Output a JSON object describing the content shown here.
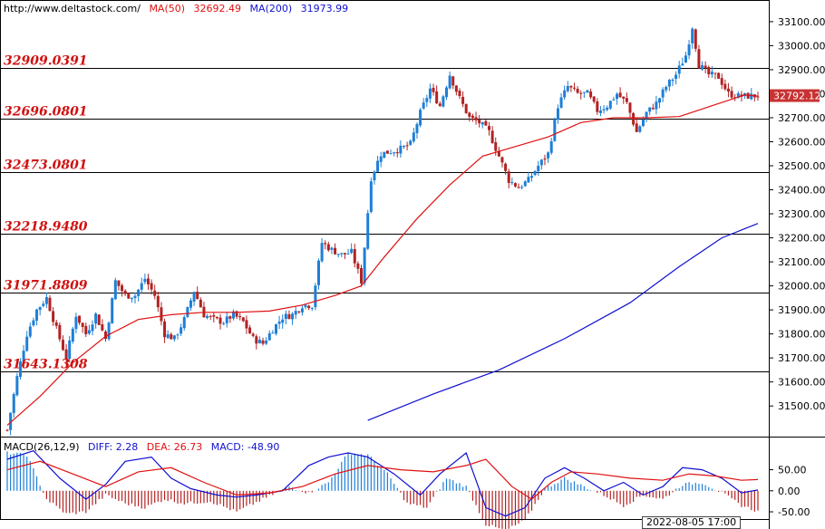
{
  "header": {
    "source": "http://www.deltastock.com/",
    "ma50_label": "MA(50)",
    "ma50_value": "32692.49",
    "ma200_label": "MA(200)",
    "ma200_value": "31973.99"
  },
  "macd_header": {
    "label": "MACD(26,12,9)",
    "diff": "DIFF: 2.28",
    "dea": "DEA: 26.73",
    "macd": "MACD: -48.90"
  },
  "colors": {
    "up": "#1e7fd6",
    "down": "#b22222",
    "ma50": "#e01010",
    "ma200": "#1010d0",
    "level_text": "#d01010",
    "diff": "#1010d0",
    "dea": "#e01010"
  },
  "date_label": "2022-08-05 17:00",
  "chart_data": [
    {
      "type": "candlestick",
      "title": "",
      "y_range": [
        31380,
        33160
      ],
      "y_ticks": [
        31500,
        31600,
        31700,
        31800,
        31900,
        32000,
        32100,
        32200,
        32300,
        32400,
        32500,
        32600,
        32700,
        32800,
        32900,
        33000,
        33100
      ],
      "y_tick_labels": [
        "31500.00",
        "31600.00",
        "31700.00",
        "31800.00",
        "31900.00",
        "32000.00",
        "32100.00",
        "32200.00",
        "32300.00",
        "32400.00",
        "32500.00",
        "32600.00",
        "32700.00",
        "32800.00",
        "32900.00",
        "33000.00",
        "33100.00"
      ],
      "current_price": 32792.12,
      "current_price_label": "32792.12",
      "levels": [
        {
          "value": 32909.0391,
          "label": "32909.0391"
        },
        {
          "value": 32696.0801,
          "label": "32696.0801"
        },
        {
          "value": 32473.0801,
          "label": "32473.0801"
        },
        {
          "value": 32218.948,
          "label": "32218.9480"
        },
        {
          "value": 31971.8809,
          "label": "31971.8809"
        },
        {
          "value": 31643.1308,
          "label": "31643.1308"
        }
      ],
      "anchors": [
        [
          0,
          31400
        ],
        [
          3,
          31620
        ],
        [
          6,
          31800
        ],
        [
          9,
          31900
        ],
        [
          12,
          31950
        ],
        [
          15,
          31820
        ],
        [
          18,
          31700
        ],
        [
          21,
          31880
        ],
        [
          24,
          31800
        ],
        [
          27,
          31880
        ],
        [
          30,
          31780
        ],
        [
          33,
          32020
        ],
        [
          36,
          31960
        ],
        [
          39,
          31960
        ],
        [
          42,
          32030
        ],
        [
          45,
          31960
        ],
        [
          48,
          31800
        ],
        [
          51,
          31780
        ],
        [
          54,
          31860
        ],
        [
          57,
          31980
        ],
        [
          60,
          31880
        ],
        [
          63,
          31860
        ],
        [
          66,
          31850
        ],
        [
          69,
          31880
        ],
        [
          72,
          31850
        ],
        [
          75,
          31780
        ],
        [
          78,
          31760
        ],
        [
          81,
          31820
        ],
        [
          84,
          31870
        ],
        [
          87,
          31880
        ],
        [
          90,
          31920
        ],
        [
          93,
          31920
        ],
        [
          96,
          32180
        ],
        [
          99,
          32150
        ],
        [
          102,
          32130
        ],
        [
          105,
          32140
        ],
        [
          108,
          32020
        ],
        [
          111,
          32450
        ],
        [
          114,
          32550
        ],
        [
          117,
          32560
        ],
        [
          120,
          32570
        ],
        [
          123,
          32590
        ],
        [
          126,
          32720
        ],
        [
          129,
          32820
        ],
        [
          132,
          32750
        ],
        [
          135,
          32880
        ],
        [
          138,
          32780
        ],
        [
          141,
          32700
        ],
        [
          144,
          32680
        ],
        [
          147,
          32640
        ],
        [
          150,
          32540
        ],
        [
          153,
          32440
        ],
        [
          156,
          32410
        ],
        [
          159,
          32440
        ],
        [
          162,
          32500
        ],
        [
          165,
          32550
        ],
        [
          168,
          32750
        ],
        [
          171,
          32830
        ],
        [
          174,
          32800
        ],
        [
          177,
          32800
        ],
        [
          180,
          32730
        ],
        [
          183,
          32750
        ],
        [
          186,
          32800
        ],
        [
          189,
          32760
        ],
        [
          192,
          32640
        ],
        [
          195,
          32720
        ],
        [
          198,
          32760
        ],
        [
          201,
          32830
        ],
        [
          204,
          32880
        ],
        [
          207,
          32960
        ],
        [
          209,
          33080
        ],
        [
          211,
          32920
        ],
        [
          214,
          32880
        ],
        [
          217,
          32870
        ],
        [
          220,
          32800
        ],
        [
          223,
          32790
        ],
        [
          226,
          32790
        ],
        [
          229,
          32792
        ]
      ],
      "ma50": [
        [
          0,
          31420
        ],
        [
          10,
          31540
        ],
        [
          20,
          31680
        ],
        [
          30,
          31790
        ],
        [
          40,
          31860
        ],
        [
          50,
          31880
        ],
        [
          60,
          31890
        ],
        [
          70,
          31890
        ],
        [
          80,
          31895
        ],
        [
          90,
          31920
        ],
        [
          100,
          31960
        ],
        [
          108,
          32000
        ],
        [
          115,
          32120
        ],
        [
          125,
          32280
        ],
        [
          135,
          32420
        ],
        [
          145,
          32540
        ],
        [
          155,
          32580
        ],
        [
          165,
          32620
        ],
        [
          175,
          32680
        ],
        [
          185,
          32700
        ],
        [
          195,
          32700
        ],
        [
          205,
          32705
        ],
        [
          215,
          32750
        ],
        [
          225,
          32795
        ],
        [
          229,
          32790
        ]
      ],
      "ma200": [
        [
          110,
          31440
        ],
        [
          130,
          31550
        ],
        [
          150,
          31650
        ],
        [
          170,
          31780
        ],
        [
          190,
          31930
        ],
        [
          205,
          32080
        ],
        [
          218,
          32200
        ],
        [
          229,
          32260
        ]
      ]
    },
    {
      "type": "macd",
      "y_range": [
        -65,
        90
      ],
      "y_ticks": [
        50,
        0,
        -50
      ],
      "y_tick_labels": [
        "50.00",
        "0.00",
        "-50.00"
      ],
      "diff": [
        [
          0,
          75
        ],
        [
          8,
          95
        ],
        [
          16,
          30
        ],
        [
          24,
          -20
        ],
        [
          30,
          15
        ],
        [
          36,
          70
        ],
        [
          44,
          80
        ],
        [
          50,
          30
        ],
        [
          56,
          5
        ],
        [
          64,
          -10
        ],
        [
          70,
          -15
        ],
        [
          76,
          -10
        ],
        [
          84,
          0
        ],
        [
          92,
          60
        ],
        [
          98,
          80
        ],
        [
          104,
          90
        ],
        [
          110,
          80
        ],
        [
          118,
          40
        ],
        [
          126,
          -10
        ],
        [
          132,
          40
        ],
        [
          140,
          90
        ],
        [
          146,
          -40
        ],
        [
          152,
          -60
        ],
        [
          158,
          -40
        ],
        [
          164,
          30
        ],
        [
          170,
          55
        ],
        [
          176,
          30
        ],
        [
          182,
          0
        ],
        [
          188,
          20
        ],
        [
          194,
          -10
        ],
        [
          200,
          10
        ],
        [
          206,
          55
        ],
        [
          212,
          50
        ],
        [
          218,
          30
        ],
        [
          224,
          -5
        ],
        [
          229,
          2
        ]
      ],
      "dea": [
        [
          0,
          50
        ],
        [
          10,
          70
        ],
        [
          20,
          40
        ],
        [
          30,
          10
        ],
        [
          40,
          45
        ],
        [
          50,
          55
        ],
        [
          60,
          20
        ],
        [
          70,
          -10
        ],
        [
          80,
          -5
        ],
        [
          90,
          10
        ],
        [
          100,
          40
        ],
        [
          110,
          60
        ],
        [
          120,
          50
        ],
        [
          130,
          45
        ],
        [
          140,
          60
        ],
        [
          146,
          75
        ],
        [
          154,
          10
        ],
        [
          160,
          -20
        ],
        [
          166,
          20
        ],
        [
          172,
          45
        ],
        [
          180,
          40
        ],
        [
          190,
          30
        ],
        [
          200,
          25
        ],
        [
          208,
          40
        ],
        [
          216,
          35
        ],
        [
          224,
          25
        ],
        [
          229,
          26.73
        ]
      ],
      "hist_profile": [
        [
          0,
          90
        ],
        [
          6,
          85
        ],
        [
          12,
          -20
        ],
        [
          18,
          -55
        ],
        [
          24,
          -50
        ],
        [
          30,
          -10
        ],
        [
          36,
          -30
        ],
        [
          42,
          -40
        ],
        [
          48,
          -20
        ],
        [
          54,
          -30
        ],
        [
          62,
          -25
        ],
        [
          70,
          -50
        ],
        [
          78,
          -20
        ],
        [
          86,
          10
        ],
        [
          92,
          -5
        ],
        [
          98,
          20
        ],
        [
          104,
          90
        ],
        [
          110,
          85
        ],
        [
          116,
          40
        ],
        [
          122,
          -30
        ],
        [
          128,
          -40
        ],
        [
          134,
          30
        ],
        [
          140,
          10
        ],
        [
          146,
          -80
        ],
        [
          152,
          -95
        ],
        [
          158,
          -70
        ],
        [
          164,
          5
        ],
        [
          170,
          30
        ],
        [
          176,
          10
        ],
        [
          182,
          -10
        ],
        [
          188,
          -35
        ],
        [
          194,
          -10
        ],
        [
          200,
          -20
        ],
        [
          206,
          15
        ],
        [
          212,
          20
        ],
        [
          218,
          -5
        ],
        [
          224,
          -35
        ],
        [
          229,
          -48.9
        ]
      ]
    }
  ]
}
